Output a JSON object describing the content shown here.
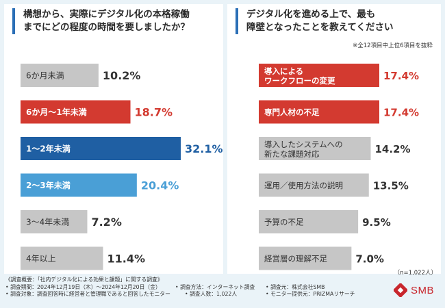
{
  "left": {
    "title": "構想から、実際にデジタル化の本格稼働\nまでにどの程度の時間を要しましたか？"
  },
  "right": {
    "title": "デジタル化を進める上で、最も\n障壁となったことを教えてください",
    "note": "※全12項目中上位6項目を抜粋"
  },
  "n_count": "（n=1,022人）",
  "footer": {
    "heading": "《調査概要：「社内デジタル化による効果と課題」に関する調査》",
    "period": "• 調査期間：2024年12月19日（木）～2024年12月20日（金）",
    "method": "• 調査方法：インターネット調査",
    "org": "• 調査元：株式会社SMB",
    "target": "• 調査対象：調査回答時に経営者と管理職であると回答したモニター",
    "people": "• 調査人数：1,022人",
    "provider": "• モニター提供元：PRIZMAリサーチ"
  },
  "logo": {
    "text": "SMB",
    "icon": "smb-logo-icon"
  },
  "colors": {
    "gray": "#c6c6c6",
    "red": "#d33a30",
    "navy": "#1f5fa3",
    "blue": "#4a9fd6"
  },
  "chart_data": [
    {
      "type": "bar",
      "orientation": "horizontal",
      "categories": [
        "6か月未満",
        "6か月～1年未満",
        "1～2年未満",
        "2～3年未満",
        "3～4年未満",
        "4年以上"
      ],
      "values": [
        10.2,
        18.7,
        32.1,
        20.4,
        7.2,
        11.4
      ],
      "value_labels": [
        "10.2%",
        "18.7%",
        "32.1%",
        "20.4%",
        "7.2%",
        "11.4%"
      ],
      "bar_colors": [
        "gray",
        "red",
        "navy",
        "blue",
        "gray",
        "gray"
      ],
      "xlim": [
        0,
        32.1
      ]
    },
    {
      "type": "bar",
      "orientation": "horizontal",
      "categories": [
        "導入による\nワークフローの変更",
        "専門人材の不足",
        "導入したシステムへの\n新たな課題対応",
        "運用／使用方法の説明",
        "予算の不足",
        "経営層の理解不足"
      ],
      "values": [
        17.4,
        17.4,
        14.2,
        13.5,
        9.5,
        7.0
      ],
      "value_labels": [
        "17.4%",
        "17.4%",
        "14.2%",
        "13.5%",
        "9.5%",
        "7.0%"
      ],
      "bar_colors": [
        "red",
        "red",
        "gray",
        "gray",
        "gray",
        "gray"
      ],
      "xlim": [
        0,
        17.4
      ]
    }
  ]
}
